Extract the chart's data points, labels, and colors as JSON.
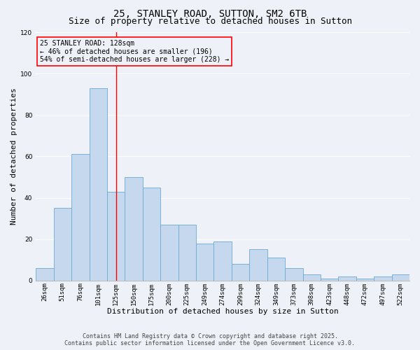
{
  "title_line1": "25, STANLEY ROAD, SUTTON, SM2 6TB",
  "title_line2": "Size of property relative to detached houses in Sutton",
  "xlabel": "Distribution of detached houses by size in Sutton",
  "ylabel": "Number of detached properties",
  "categories": [
    "26sqm",
    "51sqm",
    "76sqm",
    "101sqm",
    "125sqm",
    "150sqm",
    "175sqm",
    "200sqm",
    "225sqm",
    "249sqm",
    "274sqm",
    "299sqm",
    "324sqm",
    "349sqm",
    "373sqm",
    "398sqm",
    "423sqm",
    "448sqm",
    "472sqm",
    "497sqm",
    "522sqm"
  ],
  "bar_heights": [
    6,
    35,
    61,
    93,
    43,
    50,
    45,
    27,
    27,
    18,
    19,
    8,
    15,
    11,
    6,
    3,
    1,
    2,
    1,
    2,
    3
  ],
  "bar_color": "#c5d8ee",
  "bar_edge_color": "#6aaad4",
  "ylim": [
    0,
    120
  ],
  "yticks": [
    0,
    20,
    40,
    60,
    80,
    100,
    120
  ],
  "annotation_title": "25 STANLEY ROAD: 128sqm",
  "annotation_line2": "← 46% of detached houses are smaller (196)",
  "annotation_line3": "54% of semi-detached houses are larger (228) →",
  "footer_line1": "Contains HM Land Registry data © Crown copyright and database right 2025.",
  "footer_line2": "Contains public sector information licensed under the Open Government Licence v3.0.",
  "background_color": "#eef2f8",
  "grid_color": "#ffffff",
  "title_fontsize": 10,
  "subtitle_fontsize": 9,
  "axis_label_fontsize": 8,
  "tick_fontsize": 6.5,
  "annotation_fontsize": 7,
  "footer_fontsize": 6
}
